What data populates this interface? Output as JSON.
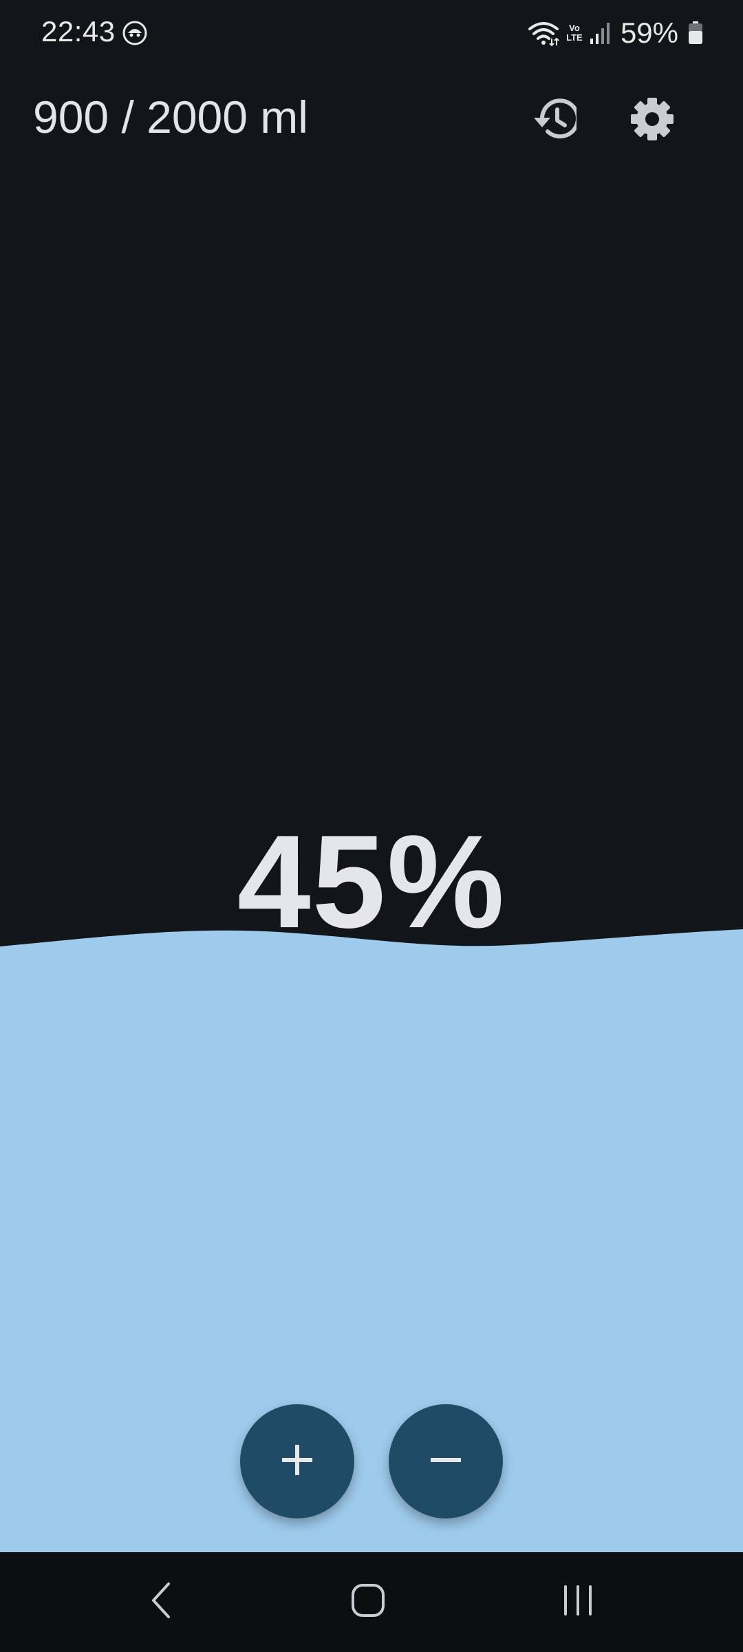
{
  "status_bar": {
    "time": "22:43",
    "battery_percent": "59%",
    "network_label": "Vo LTE",
    "icons": [
      "app-notification-icon",
      "wifi-icon",
      "volte-icon",
      "signal-icon",
      "battery-icon"
    ]
  },
  "header": {
    "intake": "900 / 2000 ml",
    "history_icon": "history-icon",
    "settings_icon": "gear-icon"
  },
  "progress": {
    "percent_label": "45%",
    "consumed_ml": 900,
    "goal_ml": 2000,
    "fill_fraction": 0.45
  },
  "actions": {
    "add_icon": "plus-icon",
    "remove_icon": "minus-icon"
  },
  "nav": {
    "icons": [
      "back-icon",
      "home-icon",
      "recents-icon"
    ]
  },
  "colors": {
    "background": "#121619",
    "water": "#9ecaec",
    "fab": "#1f4b66",
    "text": "#e2e5e8",
    "nav_bar": "#0c0e10"
  }
}
